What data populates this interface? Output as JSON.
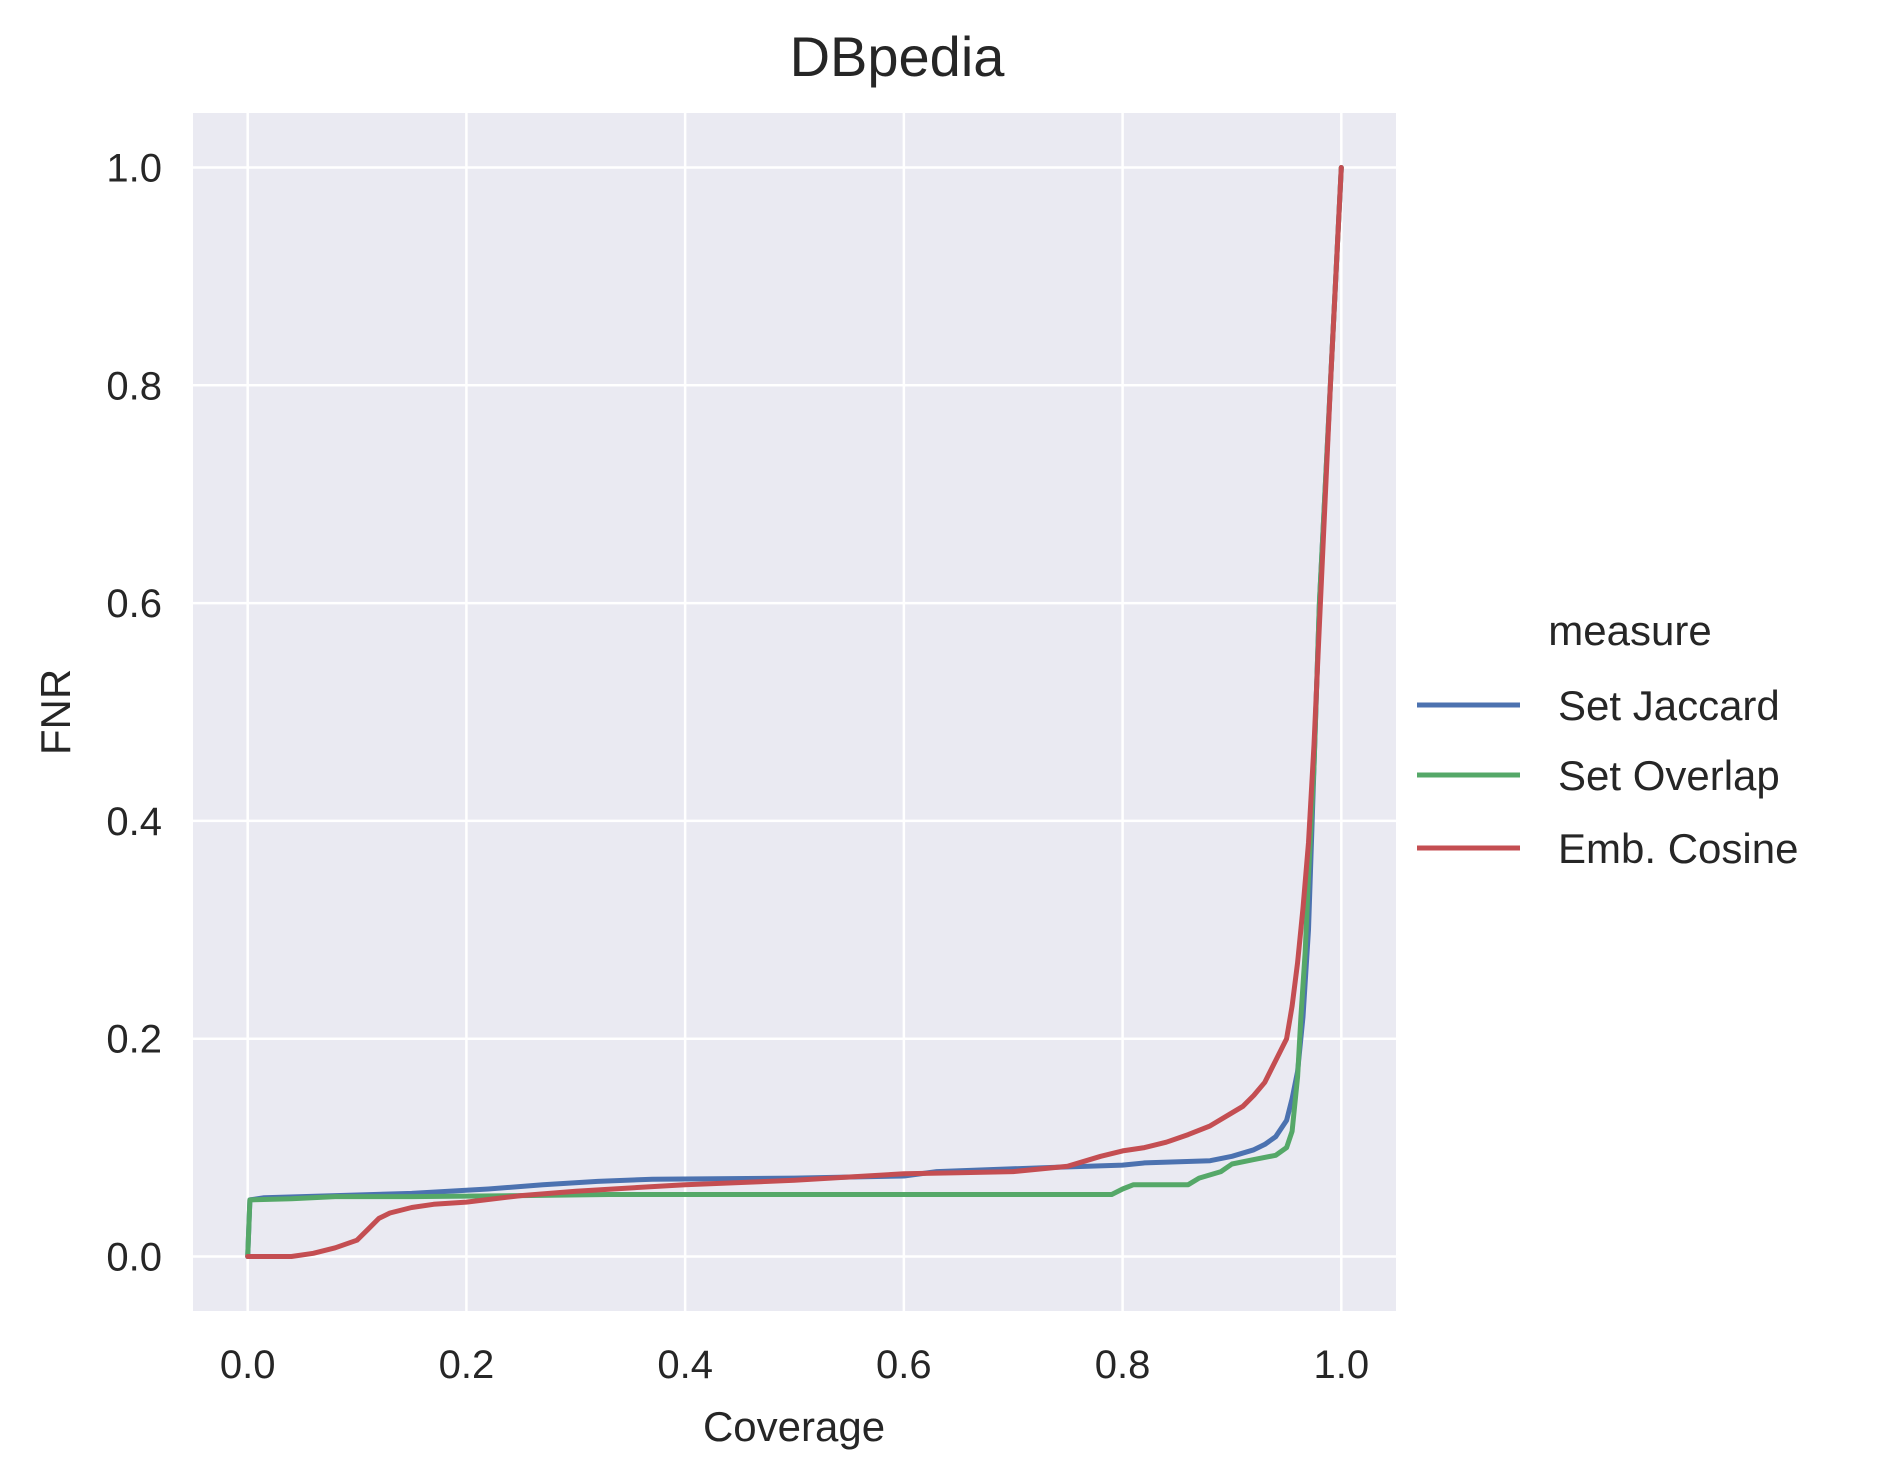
{
  "chart_data": {
    "type": "line",
    "title": "DBpedia",
    "xlabel": "Coverage",
    "ylabel": "FNR",
    "xlim": [
      -0.05,
      1.05
    ],
    "ylim": [
      -0.05,
      1.05
    ],
    "xticks": [
      0.0,
      0.2,
      0.4,
      0.6,
      0.8,
      1.0
    ],
    "yticks": [
      0.0,
      0.2,
      0.4,
      0.6,
      0.8,
      1.0
    ],
    "xtick_labels": [
      "0.0",
      "0.2",
      "0.4",
      "0.6",
      "0.8",
      "1.0"
    ],
    "ytick_labels": [
      "0.0",
      "0.2",
      "0.4",
      "0.6",
      "0.8",
      "1.0"
    ],
    "grid": true,
    "legend": {
      "title": "measure",
      "placement": "right"
    },
    "series": [
      {
        "name": "Set Jaccard",
        "color": "#4c72b0",
        "x": [
          0.0,
          0.002,
          0.015,
          0.05,
          0.15,
          0.22,
          0.27,
          0.32,
          0.37,
          0.5,
          0.6,
          0.63,
          0.74,
          0.8,
          0.82,
          0.88,
          0.9,
          0.92,
          0.93,
          0.94,
          0.95,
          0.955,
          0.96,
          0.965,
          0.97,
          0.975,
          0.98,
          1.0
        ],
        "y": [
          0.0,
          0.052,
          0.054,
          0.055,
          0.058,
          0.062,
          0.066,
          0.069,
          0.071,
          0.072,
          0.074,
          0.078,
          0.082,
          0.084,
          0.086,
          0.088,
          0.092,
          0.098,
          0.103,
          0.11,
          0.125,
          0.145,
          0.17,
          0.22,
          0.3,
          0.45,
          0.6,
          1.0
        ]
      },
      {
        "name": "Set Overlap",
        "color": "#55a868",
        "x": [
          0.0,
          0.002,
          0.04,
          0.08,
          0.15,
          0.25,
          0.33,
          0.4,
          0.5,
          0.6,
          0.7,
          0.79,
          0.8,
          0.81,
          0.86,
          0.87,
          0.89,
          0.9,
          0.92,
          0.94,
          0.95,
          0.955,
          0.96,
          0.963,
          0.967,
          0.97,
          0.975,
          0.98,
          1.0
        ],
        "y": [
          0.0,
          0.052,
          0.053,
          0.055,
          0.055,
          0.056,
          0.057,
          0.057,
          0.057,
          0.057,
          0.057,
          0.057,
          0.062,
          0.066,
          0.066,
          0.072,
          0.078,
          0.085,
          0.089,
          0.093,
          0.1,
          0.115,
          0.165,
          0.22,
          0.28,
          0.35,
          0.45,
          0.6,
          1.0
        ]
      },
      {
        "name": "Emb. Cosine",
        "color": "#c44e52",
        "x": [
          0.0,
          0.04,
          0.06,
          0.08,
          0.1,
          0.11,
          0.12,
          0.13,
          0.15,
          0.17,
          0.2,
          0.25,
          0.3,
          0.4,
          0.5,
          0.55,
          0.6,
          0.65,
          0.7,
          0.75,
          0.78,
          0.8,
          0.82,
          0.84,
          0.86,
          0.88,
          0.9,
          0.91,
          0.92,
          0.93,
          0.94,
          0.95,
          0.955,
          0.96,
          0.965,
          0.97,
          0.975,
          0.98,
          0.99,
          1.0
        ],
        "y": [
          0.0,
          0.0,
          0.003,
          0.008,
          0.015,
          0.025,
          0.035,
          0.04,
          0.045,
          0.048,
          0.05,
          0.056,
          0.06,
          0.066,
          0.07,
          0.073,
          0.076,
          0.077,
          0.078,
          0.083,
          0.092,
          0.097,
          0.1,
          0.105,
          0.112,
          0.12,
          0.132,
          0.138,
          0.148,
          0.16,
          0.18,
          0.2,
          0.23,
          0.27,
          0.32,
          0.38,
          0.47,
          0.58,
          0.8,
          1.0
        ]
      }
    ]
  }
}
